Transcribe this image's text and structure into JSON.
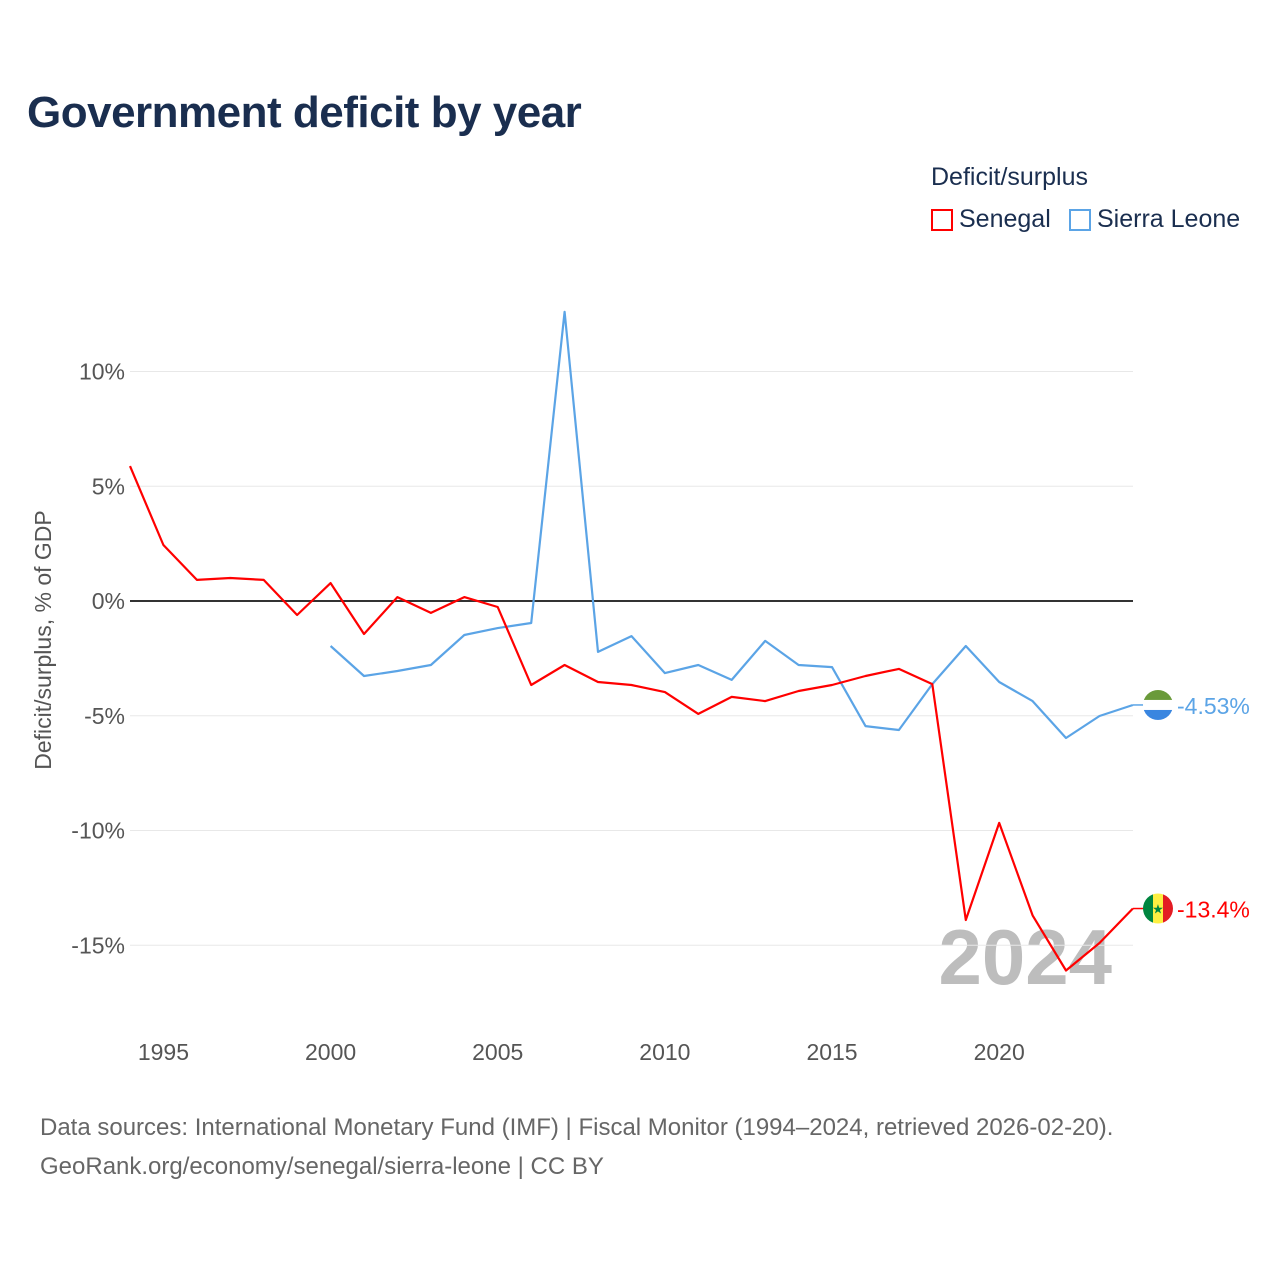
{
  "title": "Government deficit by year",
  "legend": {
    "title": "Deficit/surplus",
    "items": [
      {
        "name": "Senegal",
        "color": "#ff0000"
      },
      {
        "name": "Sierra Leone",
        "color": "#5ba4e6"
      }
    ]
  },
  "source": {
    "line1": "Data sources: International Monetary Fund (IMF) | Fiscal Monitor (1994–2024, retrieved 2026-02-20).",
    "line2": "GeoRank.org/economy/senegal/sierra-leone | CC BY"
  },
  "chart_data": {
    "type": "line",
    "title": "Government deficit by year",
    "xlabel": "",
    "ylabel": "Deficit/surplus, % of GDP",
    "xlim": [
      1994,
      2024
    ],
    "ylim": [
      -17,
      13.5
    ],
    "x_ticks": [
      1995,
      2000,
      2005,
      2010,
      2015,
      2020
    ],
    "x_tick_labels": [
      "1995",
      "2000",
      "2005",
      "2010",
      "2015",
      "2020"
    ],
    "y_ticks": [
      10,
      5,
      0,
      -5,
      -10,
      -15
    ],
    "y_tick_labels": [
      "10%",
      "5%",
      "0%",
      "-5%",
      "-10%",
      "-15%"
    ],
    "year_watermark": "2024",
    "series": [
      {
        "name": "Senegal",
        "color": "#ff0000",
        "end_label": "-13.4%",
        "x": [
          1994,
          1995,
          1996,
          1997,
          1998,
          1999,
          2000,
          2001,
          2002,
          2003,
          2004,
          2005,
          2006,
          2007,
          2008,
          2009,
          2010,
          2011,
          2012,
          2013,
          2014,
          2015,
          2016,
          2017,
          2018,
          2019,
          2020,
          2021,
          2022,
          2023,
          2024
        ],
        "values": [
          5.88,
          2.44,
          0.92,
          1.0,
          0.92,
          -0.61,
          0.78,
          -1.44,
          0.17,
          -0.52,
          0.17,
          -0.26,
          -3.66,
          -2.79,
          -3.53,
          -3.66,
          -3.97,
          -4.92,
          -4.18,
          -4.36,
          -3.92,
          -3.66,
          -3.27,
          -2.96,
          -3.62,
          -13.9,
          -9.67,
          -13.7,
          -16.1,
          -14.9,
          -13.4
        ]
      },
      {
        "name": "Sierra Leone",
        "color": "#5ba4e6",
        "end_label": "-4.53%",
        "x": [
          2000,
          2001,
          2002,
          2003,
          2004,
          2005,
          2006,
          2007,
          2008,
          2009,
          2010,
          2011,
          2012,
          2013,
          2014,
          2015,
          2016,
          2017,
          2018,
          2019,
          2020,
          2021,
          2022,
          2023,
          2024
        ],
        "values": [
          -1.96,
          -3.27,
          -3.05,
          -2.79,
          -1.48,
          -1.18,
          -0.96,
          12.6,
          -2.22,
          -1.53,
          -3.14,
          -2.79,
          -3.44,
          -1.74,
          -2.79,
          -2.88,
          -5.45,
          -5.62,
          -3.62,
          -1.96,
          -3.53,
          -4.36,
          -5.97,
          -5.01,
          -4.53
        ]
      }
    ]
  }
}
